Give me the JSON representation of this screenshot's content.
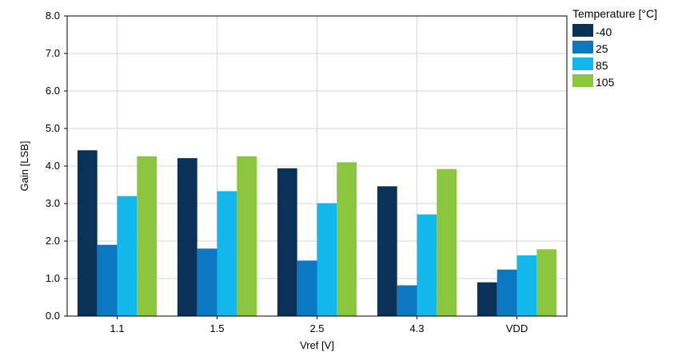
{
  "chart_data": {
    "type": "bar",
    "title": "",
    "xlabel": "Vref [V]",
    "ylabel": "Gain [LSB]",
    "categories": [
      "1.1",
      "1.5",
      "2.5",
      "4.3",
      "VDD"
    ],
    "ylim": [
      0,
      8
    ],
    "yticks": [
      "0.0",
      "1.0",
      "2.0",
      "3.0",
      "4.0",
      "5.0",
      "6.0",
      "7.0",
      "8.0"
    ],
    "grid": true,
    "legend_title": "Temperature [°C]",
    "legend_position": "top-right",
    "series": [
      {
        "name": "-40",
        "color": "#0a3259",
        "values": [
          4.42,
          4.21,
          3.94,
          3.46,
          0.9
        ]
      },
      {
        "name": "25",
        "color": "#0a78c2",
        "values": [
          1.9,
          1.8,
          1.48,
          0.82,
          1.24
        ]
      },
      {
        "name": "85",
        "color": "#12b7ec",
        "values": [
          3.2,
          3.33,
          3.01,
          2.71,
          1.62
        ]
      },
      {
        "name": "105",
        "color": "#8cc63f",
        "values": [
          4.26,
          4.26,
          4.1,
          3.92,
          1.78
        ]
      }
    ]
  }
}
